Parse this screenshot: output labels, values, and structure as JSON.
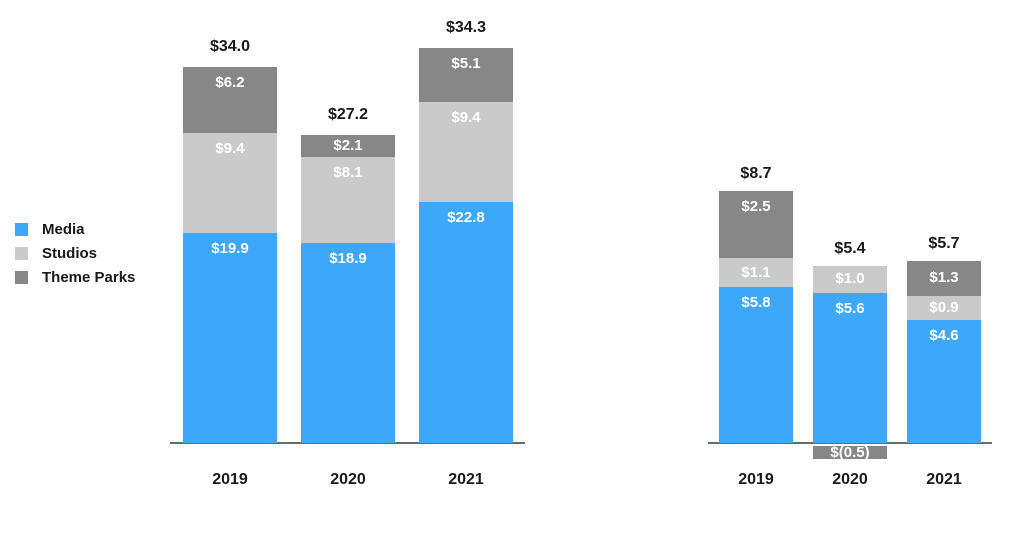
{
  "legend": {
    "items": [
      {
        "label": "Media",
        "color": "#3DA8FA"
      },
      {
        "label": "Studios",
        "color": "#CACACA"
      },
      {
        "label": "Theme Parks",
        "color": "#878787"
      }
    ]
  },
  "chart_data": [
    {
      "type": "bar",
      "stacked": true,
      "title": "",
      "categories": [
        "2019",
        "2020",
        "2021"
      ],
      "series": [
        {
          "name": "Media",
          "color": "#3DA8FA",
          "values": [
            19.9,
            18.9,
            22.8
          ],
          "labels": [
            "$19.9",
            "$18.9",
            "$22.8"
          ]
        },
        {
          "name": "Studios",
          "color": "#CACACA",
          "values": [
            9.4,
            8.1,
            9.4
          ],
          "labels": [
            "$9.4",
            "$8.1",
            "$9.4"
          ]
        },
        {
          "name": "Theme Parks",
          "color": "#878787",
          "values": [
            6.2,
            2.1,
            5.1
          ],
          "labels": [
            "$6.2",
            "$2.1",
            "$5.1"
          ]
        }
      ],
      "totals": {
        "values": [
          34.0,
          27.2,
          34.3
        ],
        "labels": [
          "$34.0",
          "$27.2",
          "$34.3"
        ]
      },
      "grid": false,
      "value_axis_visible": false,
      "baseline_axis_visible": true,
      "legend_position": "left"
    },
    {
      "type": "bar",
      "stacked": true,
      "title": "",
      "categories": [
        "2019",
        "2020",
        "2021"
      ],
      "series": [
        {
          "name": "Media",
          "color": "#3DA8FA",
          "values": [
            5.8,
            5.6,
            4.6
          ],
          "labels": [
            "$5.8",
            "$5.6",
            "$4.6"
          ]
        },
        {
          "name": "Studios",
          "color": "#CACACA",
          "values": [
            1.1,
            1.0,
            0.9
          ],
          "labels": [
            "$1.1",
            "$1.0",
            "$0.9"
          ]
        },
        {
          "name": "Theme Parks",
          "color": "#878787",
          "values": [
            2.5,
            -0.5,
            1.3
          ],
          "labels": [
            "$2.5",
            "$(0.5)",
            "$1.3"
          ]
        }
      ],
      "totals": {
        "values": [
          8.7,
          5.4,
          5.7
        ],
        "labels": [
          "$8.7",
          "$5.4",
          "$5.7"
        ]
      },
      "grid": false,
      "value_axis_visible": false,
      "baseline_axis_visible": true,
      "legend_position": "none"
    }
  ]
}
